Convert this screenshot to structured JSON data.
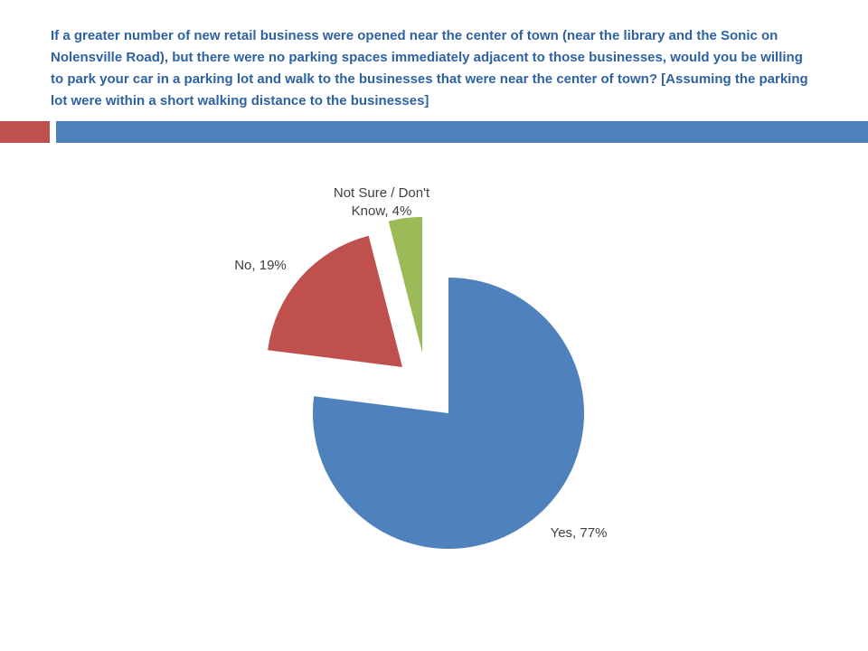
{
  "slide": {
    "title": "If a greater number of new retail business were opened near the center of town (near the library and the Sonic on Nolensville Road), but there were no parking spaces immediately adjacent to those businesses, would you be willing to park your car in a parking lot and walk to the businesses that were near the center of town?   [Assuming the parking lot were within a short walking distance to the businesses]"
  },
  "accent_colors": {
    "red_bar": "#c0504d",
    "blue_bar": "#4f81bd"
  },
  "chart_data": {
    "type": "pie",
    "exploded": true,
    "slices": [
      {
        "category": "Yes",
        "value": 77,
        "color": "#4f81bd",
        "label_lines": [
          "Yes, 77%"
        ]
      },
      {
        "category": "No",
        "value": 19,
        "color": "#c0504d",
        "label_lines": [
          "No, 19%"
        ]
      },
      {
        "category": "Not Sure / Don't Know",
        "value": 4,
        "color": "#9bbb59",
        "label_lines": [
          "Not Sure / Don't",
          "Know, 4%"
        ]
      }
    ],
    "title": "",
    "legend": "none"
  }
}
